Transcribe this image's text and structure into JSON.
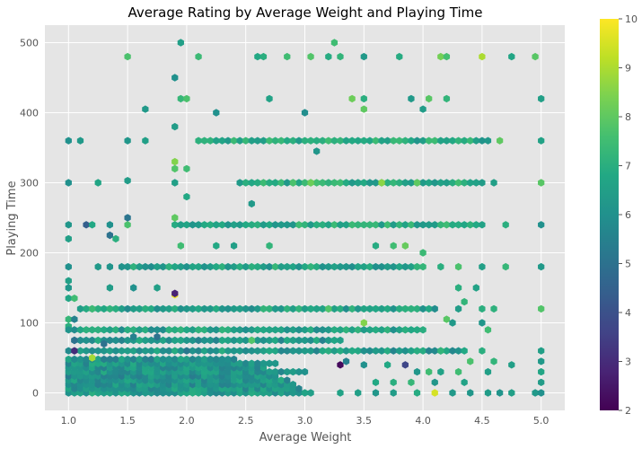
{
  "chart_data": {
    "type": "heatmap",
    "subtype": "hexbin",
    "title": "Average Rating by Average Weight and Playing Time",
    "xlabel": "Average Weight",
    "ylabel": "Playing Time",
    "xlim": [
      0.8,
      5.2
    ],
    "ylim": [
      -25,
      525
    ],
    "xticks": [
      1.0,
      1.5,
      2.0,
      2.5,
      3.0,
      3.5,
      4.0,
      4.5,
      5.0
    ],
    "xtick_labels": [
      "1.0",
      "1.5",
      "2.0",
      "2.5",
      "3.0",
      "3.5",
      "4.0",
      "4.5",
      "5.0"
    ],
    "yticks": [
      0,
      100,
      200,
      300,
      400,
      500
    ],
    "ytick_labels": [
      "0",
      "100",
      "200",
      "300",
      "400",
      "500"
    ],
    "colorbar": {
      "colormap": "viridis",
      "range": [
        2,
        10
      ],
      "ticks": [
        2,
        3,
        4,
        5,
        6,
        7,
        8,
        9,
        10
      ],
      "tick_labels": [
        "2",
        "3",
        "4",
        "5",
        "6",
        "7",
        "8",
        "9",
        "10"
      ]
    },
    "grid": true,
    "background": "#e5e5e5",
    "colors": {
      "panel": "#e5e5e5",
      "grid": "#ffffff",
      "text": "#555555"
    },
    "hex_grid": {
      "x_step": 0.05,
      "y_step": 6
    },
    "bands": [
      {
        "y": 0,
        "x_start": 1.0,
        "x_end": 3.05,
        "rating": 6.3
      },
      {
        "y": 6,
        "x_start": 1.0,
        "x_end": 2.95,
        "rating": 6.2
      },
      {
        "y": 12,
        "x_start": 1.0,
        "x_end": 2.9,
        "rating": 6.1
      },
      {
        "y": 18,
        "x_start": 1.0,
        "x_end": 2.85,
        "rating": 6.2
      },
      {
        "y": 24,
        "x_start": 1.0,
        "x_end": 2.75,
        "rating": 6.0
      },
      {
        "y": 30,
        "x_start": 1.0,
        "x_end": 3.0,
        "rating": 6.3
      },
      {
        "y": 36,
        "x_start": 1.0,
        "x_end": 2.65,
        "rating": 6.1
      },
      {
        "y": 42,
        "x_start": 1.0,
        "x_end": 2.75,
        "rating": 6.2
      },
      {
        "y": 48,
        "x_start": 1.0,
        "x_end": 2.4,
        "rating": 6.0
      },
      {
        "y": 60,
        "x_start": 1.0,
        "x_end": 4.3,
        "rating": 6.3
      },
      {
        "y": 75,
        "x_start": 1.05,
        "x_end": 3.3,
        "rating": 6.2
      },
      {
        "y": 90,
        "x_start": 1.05,
        "x_end": 4.0,
        "rating": 6.5
      },
      {
        "y": 120,
        "x_start": 1.1,
        "x_end": 4.1,
        "rating": 6.5
      },
      {
        "y": 180,
        "x_start": 1.45,
        "x_end": 4.0,
        "rating": 6.6
      },
      {
        "y": 240,
        "x_start": 1.9,
        "x_end": 4.5,
        "rating": 6.8
      },
      {
        "y": 300,
        "x_start": 2.45,
        "x_end": 4.5,
        "rating": 6.9
      },
      {
        "y": 360,
        "x_start": 2.1,
        "x_end": 4.55,
        "rating": 6.8
      }
    ],
    "points": [
      [
        1.95,
        500,
        6.5
      ],
      [
        2.1,
        480,
        7.4
      ],
      [
        2.6,
        480,
        6.8
      ],
      [
        2.65,
        480,
        7.0
      ],
      [
        2.85,
        480,
        7.5
      ],
      [
        3.05,
        480,
        7.8
      ],
      [
        3.2,
        480,
        6.9
      ],
      [
        3.3,
        480,
        7.2
      ],
      [
        3.5,
        480,
        6.3
      ],
      [
        3.8,
        480,
        6.9
      ],
      [
        4.15,
        480,
        8.3
      ],
      [
        4.2,
        480,
        7.6
      ],
      [
        4.5,
        480,
        9.0
      ],
      [
        4.75,
        480,
        6.7
      ],
      [
        4.95,
        480,
        7.9
      ],
      [
        1.5,
        480,
        7.7
      ],
      [
        3.25,
        500,
        7.5
      ],
      [
        1.9,
        450,
        6.0
      ],
      [
        1.65,
        405,
        6.3
      ],
      [
        2.25,
        400,
        6.0
      ],
      [
        3.0,
        400,
        5.9
      ],
      [
        3.5,
        405,
        8.0
      ],
      [
        4.0,
        405,
        6.4
      ],
      [
        1.95,
        420,
        7.3
      ],
      [
        2.0,
        420,
        7.7
      ],
      [
        2.7,
        420,
        6.6
      ],
      [
        3.4,
        420,
        8.2
      ],
      [
        3.5,
        420,
        7.0
      ],
      [
        3.9,
        420,
        6.3
      ],
      [
        4.05,
        420,
        7.9
      ],
      [
        4.2,
        420,
        7.2
      ],
      [
        5.0,
        420,
        6.5
      ],
      [
        1.0,
        360,
        6.0
      ],
      [
        1.1,
        360,
        6.3
      ],
      [
        1.5,
        360,
        6.2
      ],
      [
        1.65,
        360,
        6.5
      ],
      [
        1.9,
        380,
        6.4
      ],
      [
        4.65,
        360,
        8.0
      ],
      [
        5.0,
        360,
        6.6
      ],
      [
        3.1,
        345,
        6.2
      ],
      [
        1.9,
        330,
        8.5
      ],
      [
        1.9,
        320,
        7.8
      ],
      [
        2.0,
        320,
        7.5
      ],
      [
        1.0,
        300,
        6.0
      ],
      [
        1.25,
        300,
        6.7
      ],
      [
        1.5,
        303,
        6.4
      ],
      [
        1.9,
        300,
        6.5
      ],
      [
        2.0,
        280,
        6.8
      ],
      [
        2.55,
        270,
        6.3
      ],
      [
        4.6,
        300,
        6.5
      ],
      [
        5.0,
        300,
        7.9
      ],
      [
        1.0,
        240,
        6.2
      ],
      [
        1.15,
        240,
        4.4
      ],
      [
        1.2,
        240,
        6.8
      ],
      [
        1.35,
        240,
        6.0
      ],
      [
        1.5,
        250,
        5.1
      ],
      [
        1.5,
        240,
        7.7
      ],
      [
        1.9,
        250,
        8.0
      ],
      [
        4.7,
        240,
        7.0
      ],
      [
        5.0,
        240,
        6.0
      ],
      [
        1.0,
        220,
        6.5
      ],
      [
        1.35,
        225,
        5.0
      ],
      [
        1.4,
        220,
        7.0
      ],
      [
        1.95,
        210,
        7.5
      ],
      [
        2.25,
        210,
        6.8
      ],
      [
        2.4,
        210,
        6.5
      ],
      [
        2.7,
        210,
        7.2
      ],
      [
        3.6,
        210,
        6.9
      ],
      [
        3.75,
        210,
        7.5
      ],
      [
        3.85,
        210,
        8.1
      ],
      [
        4.0,
        200,
        7.4
      ],
      [
        1.0,
        180,
        6.0
      ],
      [
        1.25,
        180,
        6.3
      ],
      [
        1.35,
        180,
        6.1
      ],
      [
        4.15,
        180,
        7.0
      ],
      [
        4.3,
        180,
        7.7
      ],
      [
        4.5,
        180,
        6.5
      ],
      [
        4.7,
        180,
        7.3
      ],
      [
        5.0,
        180,
        6.3
      ],
      [
        1.0,
        160,
        6.5
      ],
      [
        1.0,
        150,
        6.2
      ],
      [
        1.35,
        150,
        6.4
      ],
      [
        1.55,
        150,
        6.0
      ],
      [
        1.75,
        150,
        6.5
      ],
      [
        4.3,
        150,
        7.0
      ],
      [
        4.45,
        150,
        6.6
      ],
      [
        1.0,
        135,
        6.7
      ],
      [
        1.05,
        135,
        7.5
      ],
      [
        1.9,
        140,
        9.8
      ],
      [
        1.9,
        142,
        2.8
      ],
      [
        4.35,
        130,
        7.2
      ],
      [
        1.2,
        120,
        7.4
      ],
      [
        4.3,
        120,
        6.4
      ],
      [
        4.5,
        120,
        7.0
      ],
      [
        4.6,
        120,
        7.1
      ],
      [
        5.0,
        120,
        7.8
      ],
      [
        1.0,
        105,
        7.3
      ],
      [
        1.05,
        105,
        5.5
      ],
      [
        1.0,
        95,
        7.0
      ],
      [
        4.2,
        105,
        7.9
      ],
      [
        4.25,
        100,
        6.3
      ],
      [
        4.5,
        100,
        6.2
      ],
      [
        4.55,
        90,
        7.5
      ],
      [
        1.05,
        75,
        5.0
      ],
      [
        1.05,
        60,
        3.0
      ],
      [
        1.0,
        90,
        6.1
      ],
      [
        4.15,
        60,
        7.2
      ],
      [
        4.35,
        60,
        6.8
      ],
      [
        4.5,
        60,
        7.0
      ],
      [
        5.0,
        60,
        6.5
      ],
      [
        4.4,
        45,
        7.7
      ],
      [
        4.6,
        45,
        7.2
      ],
      [
        4.75,
        40,
        6.5
      ],
      [
        5.0,
        45,
        6.3
      ],
      [
        3.85,
        40,
        3.7
      ],
      [
        3.3,
        40,
        2.2
      ],
      [
        3.35,
        45,
        5.5
      ],
      [
        3.5,
        40,
        6.0
      ],
      [
        3.7,
        40,
        6.8
      ],
      [
        3.95,
        30,
        6.2
      ],
      [
        4.05,
        30,
        7.5
      ],
      [
        4.15,
        30,
        6.6
      ],
      [
        4.3,
        30,
        7.5
      ],
      [
        4.55,
        30,
        6.5
      ],
      [
        5.0,
        30,
        6.7
      ],
      [
        3.6,
        15,
        6.8
      ],
      [
        3.75,
        15,
        7.0
      ],
      [
        3.9,
        15,
        7.3
      ],
      [
        4.1,
        15,
        6.2
      ],
      [
        4.35,
        15,
        6.6
      ],
      [
        5.0,
        15,
        6.4
      ],
      [
        3.3,
        0,
        6.6
      ],
      [
        3.45,
        0,
        6.5
      ],
      [
        3.6,
        0,
        6.2
      ],
      [
        3.75,
        0,
        6.4
      ],
      [
        3.95,
        0,
        6.9
      ],
      [
        4.1,
        0,
        9.5
      ],
      [
        4.25,
        0,
        6.3
      ],
      [
        4.4,
        0,
        6.2
      ],
      [
        4.55,
        0,
        6.4
      ],
      [
        4.65,
        0,
        6.1
      ],
      [
        4.75,
        0,
        6.5
      ],
      [
        4.95,
        0,
        6.3
      ],
      [
        5.0,
        0,
        6.0
      ],
      [
        1.2,
        50,
        8.9
      ],
      [
        1.3,
        70,
        5.0
      ],
      [
        1.55,
        80,
        5.5
      ],
      [
        1.75,
        80,
        5.0
      ],
      [
        2.0,
        60,
        5.2
      ],
      [
        2.55,
        75,
        7.8
      ],
      [
        3.2,
        120,
        7.8
      ],
      [
        3.5,
        100,
        8.5
      ],
      [
        2.9,
        300,
        7.7
      ],
      [
        3.05,
        300,
        8.2
      ],
      [
        3.65,
        300,
        8.6
      ],
      [
        3.95,
        300,
        8.0
      ]
    ]
  }
}
